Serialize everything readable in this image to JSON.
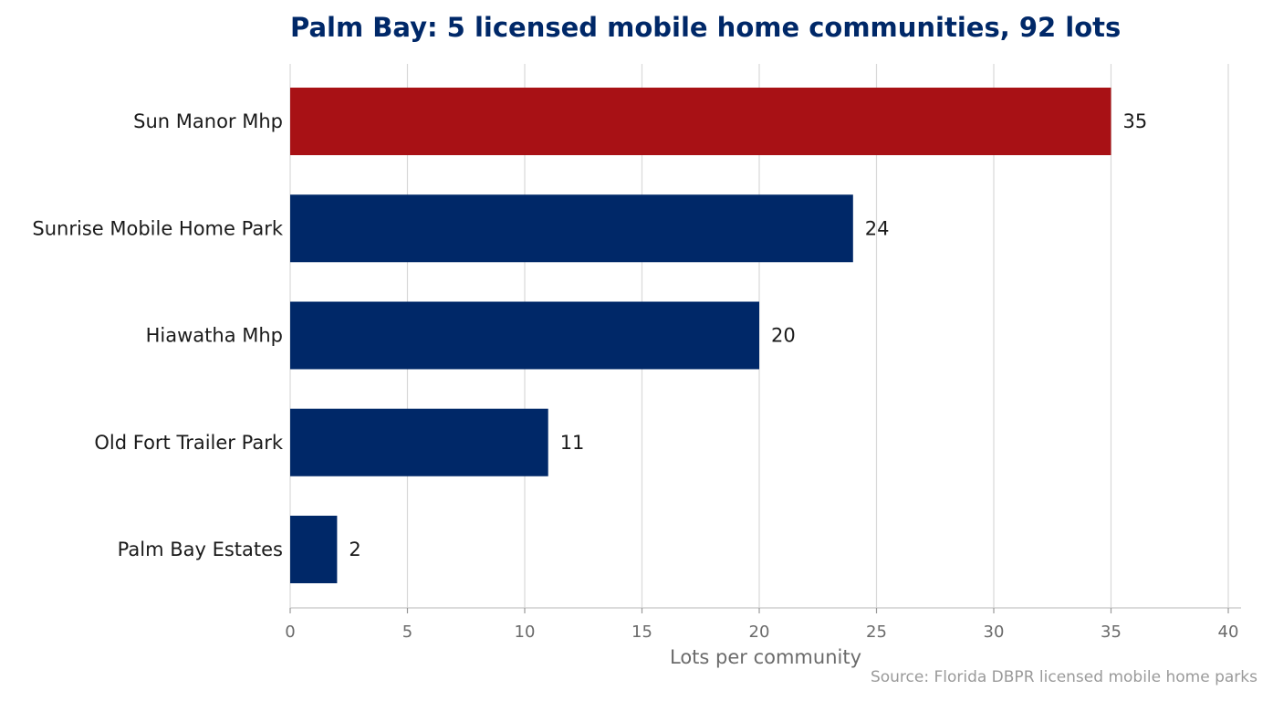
{
  "chart_data": {
    "type": "bar",
    "orientation": "horizontal",
    "title": "Palm Bay: 5 licensed mobile home communities, 92 lots",
    "xlabel": "Lots per community",
    "ylabel": "",
    "categories": [
      "Sun Manor Mhp",
      "Sunrise Mobile Home Park",
      "Hiawatha Mhp",
      "Old Fort Trailer Park",
      "Palm Bay Estates"
    ],
    "values": [
      35,
      24,
      20,
      11,
      2
    ],
    "data_labels": [
      "35",
      "24",
      "20",
      "11",
      "2"
    ],
    "xlim": [
      0,
      40
    ],
    "xticks": [
      0,
      5,
      10,
      15,
      20,
      25,
      30,
      35,
      40
    ],
    "xtick_labels": [
      "0",
      "5",
      "10",
      "15",
      "20",
      "25",
      "30",
      "35",
      "40"
    ],
    "grid": "vertical",
    "legend": "none",
    "highlight_index": 0,
    "colors": {
      "highlight": "#A81115",
      "default": "#002868",
      "title": "#002868",
      "grid": "#d9d9d9"
    },
    "source": "Source: Florida DBPR licensed mobile home parks"
  }
}
